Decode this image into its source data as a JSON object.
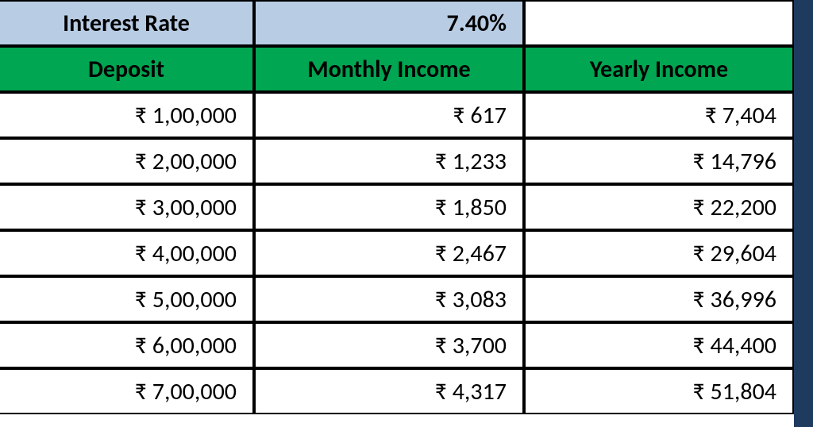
{
  "interest": {
    "label": "Interest Rate",
    "value": "7.40%"
  },
  "columns": {
    "deposit": "Deposit",
    "monthly": "Monthly Income",
    "yearly": "Yearly Income"
  },
  "rows": [
    {
      "deposit": "₹ 1,00,000",
      "monthly": "₹ 617",
      "yearly": "₹ 7,404"
    },
    {
      "deposit": "₹ 2,00,000",
      "monthly": "₹ 1,233",
      "yearly": "₹ 14,796"
    },
    {
      "deposit": "₹ 3,00,000",
      "monthly": "₹ 1,850",
      "yearly": "₹ 22,200"
    },
    {
      "deposit": "₹ 4,00,000",
      "monthly": "₹ 2,467",
      "yearly": "₹ 29,604"
    },
    {
      "deposit": "₹ 5,00,000",
      "monthly": "₹ 3,083",
      "yearly": "₹ 36,996"
    },
    {
      "deposit": "₹ 6,00,000",
      "monthly": "₹ 3,700",
      "yearly": "₹ 44,400"
    },
    {
      "deposit": "₹ 7,00,000",
      "monthly": "₹ 4,317",
      "yearly": "₹ 51,804"
    }
  ],
  "style": {
    "header_bg": "#b8cce4",
    "column_header_bg": "#00a651",
    "side_strip_bg": "#1f3a5f",
    "cell_bg": "#ffffff",
    "border_color": "#000000",
    "font_size": 30
  }
}
